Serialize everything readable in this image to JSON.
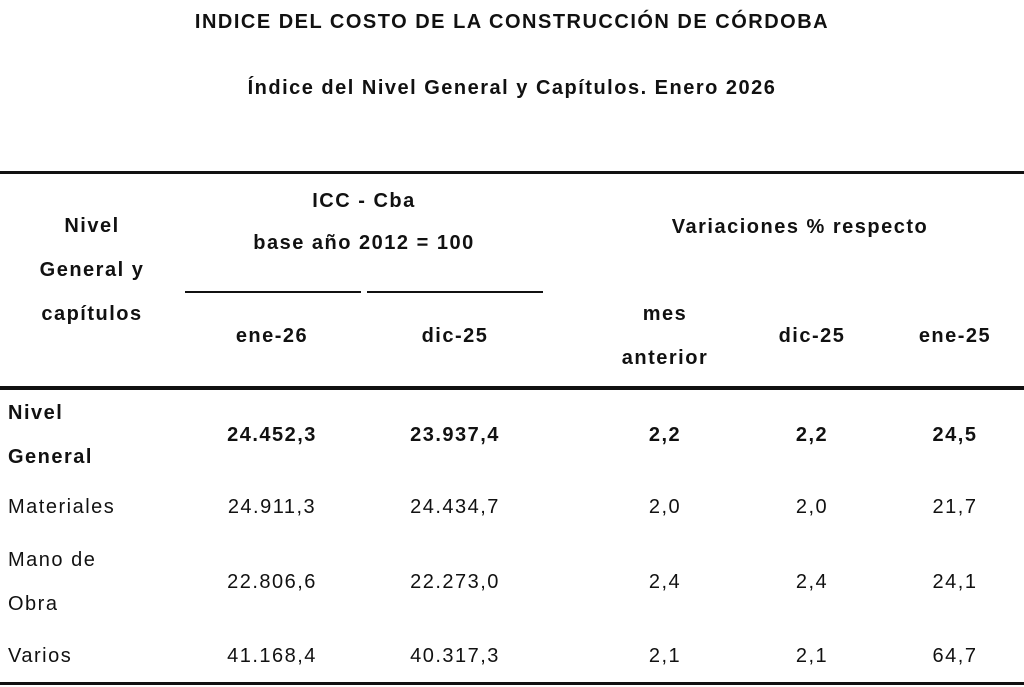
{
  "header": {
    "title": "INDICE DEL COSTO DE LA CONSTRUCCIÓN DE CÓRDOBA",
    "subtitle": "Índice del Nivel General y Capítulos.  Enero 2026"
  },
  "table": {
    "headers": {
      "row_label": "Nivel General y capítulos",
      "icc_line1": "ICC - Cba",
      "icc_line2": "base año 2012 = 100",
      "variations": "Variaciones % respecto",
      "columns": [
        "ene-26",
        "dic-25",
        "mes anterior",
        "dic-25",
        "ene-25"
      ]
    },
    "rows": [
      [
        "Nivel General",
        "24.452,3",
        "23.937,4",
        "2,2",
        "2,2",
        "24,5"
      ],
      [
        "Materiales",
        "24.911,3",
        "24.434,7",
        "2,0",
        "2,0",
        "21,7"
      ],
      [
        "Mano de Obra",
        "22.806,6",
        "22.273,0",
        "2,4",
        "2,4",
        "24,1"
      ],
      [
        "Varios",
        "41.168,4",
        "40.317,3",
        "2,1",
        "2,1",
        "64,7"
      ]
    ]
  }
}
